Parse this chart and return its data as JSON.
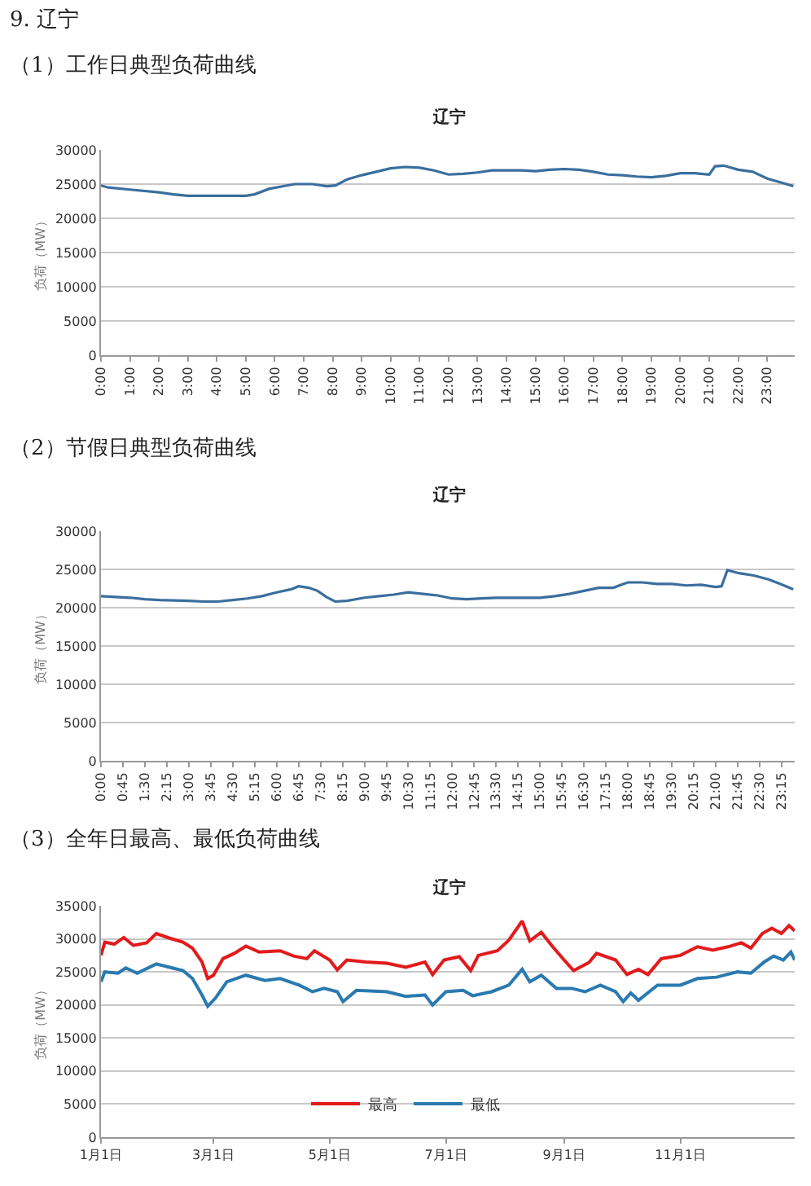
{
  "chart_data": [
    {
      "type": "line",
      "title": "辽宁",
      "annotations": [
        "9. 辽宁",
        "（1）工作日典型负荷曲线"
      ],
      "ylabel": "负荷（MW）",
      "grid": "y",
      "legend": false,
      "x": [
        0,
        0.25,
        1,
        2,
        2.5,
        3,
        4,
        5,
        5.3,
        5.8,
        6.3,
        6.7,
        7.3,
        7.8,
        8.1,
        8.5,
        9,
        9.5,
        10,
        10.5,
        11,
        11.5,
        12,
        12.5,
        13,
        13.5,
        14,
        14.5,
        15,
        15.5,
        16,
        16.5,
        17,
        17.5,
        18,
        18.5,
        19,
        19.5,
        20,
        20.5,
        21,
        21.2,
        21.5,
        22,
        22.5,
        23,
        23.5,
        23.9
      ],
      "series": [
        {
          "color": "#3a6e9e",
          "values": [
            24800,
            24500,
            24200,
            23800,
            23500,
            23300,
            23300,
            23300,
            23500,
            24300,
            24700,
            25000,
            25000,
            24700,
            24800,
            25700,
            26300,
            26800,
            27300,
            27500,
            27400,
            27000,
            26400,
            26500,
            26700,
            27000,
            27000,
            27000,
            26900,
            27100,
            27200,
            27100,
            26800,
            26400,
            26300,
            26100,
            26000,
            26200,
            26600,
            26600,
            26400,
            27600,
            27700,
            27100,
            26800,
            25800,
            25200,
            24700
          ]
        }
      ],
      "xlim": [
        0,
        23.95
      ],
      "ylim": [
        0,
        30000
      ],
      "yticks": [
        0,
        5000,
        10000,
        15000,
        20000,
        25000,
        30000
      ],
      "xticks": [
        {
          "value": 0,
          "label": "0:00"
        },
        {
          "value": 1,
          "label": "1:00"
        },
        {
          "value": 2,
          "label": "2:00"
        },
        {
          "value": 3,
          "label": "3:00"
        },
        {
          "value": 4,
          "label": "4:00"
        },
        {
          "value": 5,
          "label": "5:00"
        },
        {
          "value": 6,
          "label": "6:00"
        },
        {
          "value": 7,
          "label": "7:00"
        },
        {
          "value": 8,
          "label": "8:00"
        },
        {
          "value": 9,
          "label": "9:00"
        },
        {
          "value": 10,
          "label": "10:00"
        },
        {
          "value": 11,
          "label": "11:00"
        },
        {
          "value": 12,
          "label": "12:00"
        },
        {
          "value": 13,
          "label": "13:00"
        },
        {
          "value": 14,
          "label": "14:00"
        },
        {
          "value": 15,
          "label": "15:00"
        },
        {
          "value": 16,
          "label": "16:00"
        },
        {
          "value": 17,
          "label": "17:00"
        },
        {
          "value": 18,
          "label": "18:00"
        },
        {
          "value": 19,
          "label": "19:00"
        },
        {
          "value": 20,
          "label": "20:00"
        },
        {
          "value": 21,
          "label": "21:00"
        },
        {
          "value": 22,
          "label": "22:00"
        },
        {
          "value": 23,
          "label": "23:00"
        }
      ]
    },
    {
      "type": "line",
      "title": "辽宁",
      "annotations": [
        "（2）节假日典型负荷曲线"
      ],
      "ylabel": "负荷（MW）",
      "grid": "y",
      "legend": false,
      "x": [
        0,
        0.5,
        1,
        1.5,
        2,
        3,
        3.5,
        4,
        4.5,
        5,
        5.5,
        6,
        6.5,
        6.75,
        7.1,
        7.4,
        7.7,
        8,
        8.4,
        9,
        9.5,
        10,
        10.5,
        11,
        11.5,
        12,
        12.5,
        13,
        13.5,
        14,
        14.5,
        15,
        15.5,
        16,
        16.5,
        17,
        17.5,
        18,
        18.5,
        19,
        19.5,
        20,
        20.5,
        21,
        21.2,
        21.4,
        21.8,
        22.3,
        22.8,
        23.2,
        23.65
      ],
      "series": [
        {
          "color": "#3a6e9e",
          "values": [
            21500,
            21400,
            21300,
            21100,
            21000,
            20900,
            20800,
            20800,
            21000,
            21200,
            21500,
            22000,
            22400,
            22800,
            22600,
            22200,
            21400,
            20800,
            20900,
            21300,
            21500,
            21700,
            22000,
            21800,
            21600,
            21200,
            21100,
            21200,
            21300,
            21300,
            21300,
            21300,
            21500,
            21800,
            22200,
            22600,
            22600,
            23300,
            23300,
            23100,
            23100,
            22900,
            23000,
            22700,
            22800,
            24900,
            24500,
            24200,
            23700,
            23100,
            22400
          ]
        }
      ],
      "xlim": [
        0,
        23.7
      ],
      "ylim": [
        0,
        30000
      ],
      "yticks": [
        0,
        5000,
        10000,
        15000,
        20000,
        25000,
        30000
      ],
      "xticks": [
        {
          "value": 0,
          "label": "0:00"
        },
        {
          "value": 0.75,
          "label": "0:45"
        },
        {
          "value": 1.5,
          "label": "1:30"
        },
        {
          "value": 2.25,
          "label": "2:15"
        },
        {
          "value": 3,
          "label": "3:00"
        },
        {
          "value": 3.75,
          "label": "3:45"
        },
        {
          "value": 4.5,
          "label": "4:30"
        },
        {
          "value": 5.25,
          "label": "5:15"
        },
        {
          "value": 6,
          "label": "6:00"
        },
        {
          "value": 6.75,
          "label": "6:45"
        },
        {
          "value": 7.5,
          "label": "7:30"
        },
        {
          "value": 8.25,
          "label": "8:15"
        },
        {
          "value": 9,
          "label": "9:00"
        },
        {
          "value": 9.75,
          "label": "9:45"
        },
        {
          "value": 10.5,
          "label": "10:30"
        },
        {
          "value": 11.25,
          "label": "11:15"
        },
        {
          "value": 12,
          "label": "12:00"
        },
        {
          "value": 12.75,
          "label": "12:45"
        },
        {
          "value": 13.5,
          "label": "13:30"
        },
        {
          "value": 14.25,
          "label": "14:15"
        },
        {
          "value": 15,
          "label": "15:00"
        },
        {
          "value": 15.75,
          "label": "15:45"
        },
        {
          "value": 16.5,
          "label": "16:30"
        },
        {
          "value": 17.25,
          "label": "17:15"
        },
        {
          "value": 18,
          "label": "18:00"
        },
        {
          "value": 18.75,
          "label": "18:45"
        },
        {
          "value": 19.5,
          "label": "19:30"
        },
        {
          "value": 20.25,
          "label": "20:15"
        },
        {
          "value": 21,
          "label": "21:00"
        },
        {
          "value": 21.75,
          "label": "21:45"
        },
        {
          "value": 22.5,
          "label": "22:30"
        },
        {
          "value": 23.25,
          "label": "23:15"
        }
      ]
    },
    {
      "type": "line",
      "title": "辽宁",
      "annotations": [
        "（3）全年日最高、最低负荷曲线"
      ],
      "ylabel": "负荷（MW）",
      "grid": "y",
      "legend": "bottom",
      "series": [
        {
          "name": "最高",
          "color": "#e31a1c",
          "x": [
            "--01-01",
            "--01-03",
            "--01-08",
            "--01-13",
            "--01-18",
            "--01-25",
            "--01-30",
            "--02-06",
            "--02-13",
            "--02-18",
            "--02-23",
            "--02-26",
            "--03-01",
            "--03-06",
            "--03-12",
            "--03-18",
            "--03-25",
            "--04-05",
            "--04-12",
            "--04-19",
            "--04-23",
            "--05-01",
            "--05-05",
            "--05-10",
            "--05-20",
            "--05-31",
            "--06-10",
            "--06-20",
            "--06-24",
            "--06-30",
            "--07-08",
            "--07-14",
            "--07-18",
            "--07-28",
            "--08-03",
            "--08-10",
            "--08-14",
            "--08-20",
            "--08-26",
            "--09-01",
            "--09-06",
            "--09-14",
            "--09-18",
            "--09-28",
            "--10-04",
            "--10-10",
            "--10-15",
            "--10-22",
            "--11-01",
            "--11-10",
            "--11-18",
            "--11-26",
            "--12-03",
            "--12-08",
            "--12-14",
            "--12-19",
            "--12-24",
            "--12-28",
            "--12-31"
          ],
          "values": [
            27500,
            29500,
            29200,
            30200,
            29000,
            29400,
            30800,
            30100,
            29500,
            28600,
            26500,
            24000,
            24500,
            27000,
            27800,
            28900,
            28000,
            28200,
            27400,
            27000,
            28200,
            26800,
            25300,
            26800,
            26500,
            26300,
            25700,
            26500,
            24600,
            26800,
            27300,
            25200,
            27500,
            28200,
            29800,
            32700,
            29700,
            31000,
            28800,
            26800,
            25200,
            26400,
            27800,
            26800,
            24600,
            25400,
            24600,
            27000,
            27500,
            28800,
            28300,
            28800,
            29400,
            28600,
            30800,
            31600,
            30800,
            32000,
            31200
          ]
        },
        {
          "name": "最低",
          "color": "#2a7ab0",
          "x": [
            "--01-01",
            "--01-03",
            "--01-10",
            "--01-14",
            "--01-20",
            "--01-30",
            "--02-06",
            "--02-13",
            "--02-18",
            "--02-23",
            "--02-26",
            "--03-02",
            "--03-08",
            "--03-18",
            "--03-28",
            "--04-05",
            "--04-15",
            "--04-22",
            "--04-28",
            "--05-05",
            "--05-08",
            "--05-15",
            "--05-31",
            "--06-10",
            "--06-20",
            "--06-24",
            "--07-01",
            "--07-10",
            "--07-15",
            "--07-25",
            "--08-03",
            "--08-10",
            "--08-14",
            "--08-20",
            "--08-28",
            "--09-05",
            "--09-12",
            "--09-20",
            "--09-28",
            "--10-02",
            "--10-06",
            "--10-10",
            "--10-20",
            "--11-01",
            "--11-10",
            "--11-20",
            "--12-01",
            "--12-08",
            "--12-15",
            "--12-20",
            "--12-25",
            "--12-29",
            "--12-31"
          ],
          "values": [
            23500,
            25000,
            24800,
            25600,
            24800,
            26200,
            25700,
            25200,
            24000,
            21500,
            19800,
            21000,
            23500,
            24500,
            23700,
            24000,
            23000,
            22000,
            22500,
            22000,
            20500,
            22200,
            22000,
            21300,
            21500,
            20000,
            22000,
            22200,
            21400,
            22000,
            23000,
            25400,
            23500,
            24500,
            22500,
            22500,
            22000,
            23000,
            22000,
            20500,
            21800,
            20700,
            23000,
            23000,
            24000,
            24200,
            25000,
            24800,
            26500,
            27400,
            26800,
            28000,
            26800
          ]
        }
      ],
      "xlim": [
        "--01-01",
        "--12-31"
      ],
      "ylim": [
        0,
        35000
      ],
      "yticks": [
        0,
        5000,
        10000,
        15000,
        20000,
        25000,
        30000,
        35000
      ],
      "xticks": [
        {
          "value": "--01-01",
          "label": "1月1日"
        },
        {
          "value": "--03-01",
          "label": "3月1日"
        },
        {
          "value": "--05-01",
          "label": "5月1日"
        },
        {
          "value": "--07-01",
          "label": "7月1日"
        },
        {
          "value": "--09-01",
          "label": "9月1日"
        },
        {
          "value": "--11-01",
          "label": "11月1日"
        }
      ]
    }
  ]
}
